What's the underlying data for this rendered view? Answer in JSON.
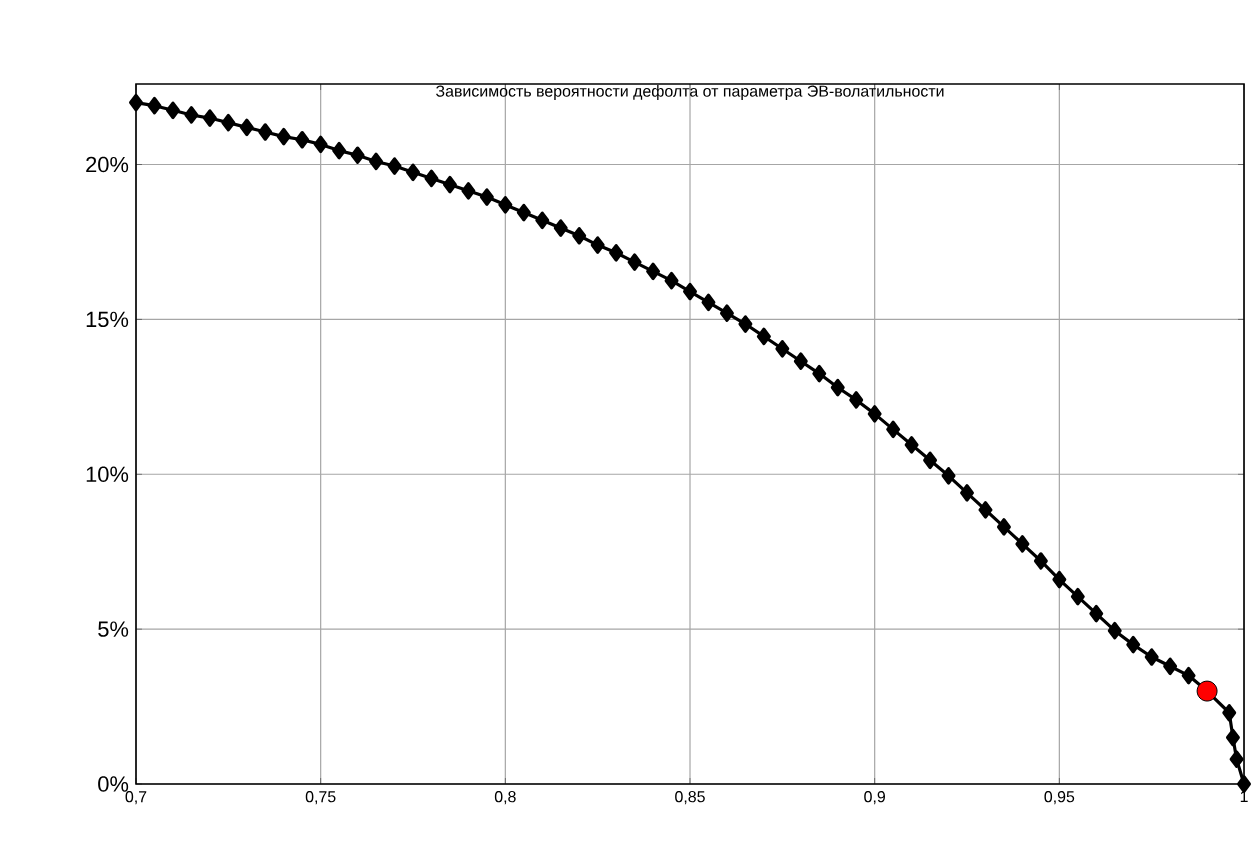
{
  "chart_data": {
    "type": "line",
    "title": "Зависимость вероятности дефолта от параметра ЭВ-волатильности",
    "xlim": [
      0.7,
      1
    ],
    "ylim": [
      0,
      22.6
    ],
    "xticks": [
      {
        "value": 0.7,
        "label": "0,7"
      },
      {
        "value": 0.75,
        "label": "0,75"
      },
      {
        "value": 0.8,
        "label": "0,8"
      },
      {
        "value": 0.85,
        "label": "0,85"
      },
      {
        "value": 0.9,
        "label": "0,9"
      },
      {
        "value": 0.95,
        "label": "0,95"
      },
      {
        "value": 1,
        "label": "1"
      }
    ],
    "yticks": [
      {
        "value": 0,
        "label": "0%"
      },
      {
        "value": 5,
        "label": "5%"
      },
      {
        "value": 10,
        "label": "10%"
      },
      {
        "value": 15,
        "label": "15%"
      },
      {
        "value": 20,
        "label": "20%"
      }
    ],
    "grid": true,
    "series": [
      {
        "color": "#000000",
        "marker": "diamond",
        "x": [
          0.7,
          0.705,
          0.71,
          0.715,
          0.72,
          0.725,
          0.73,
          0.735,
          0.74,
          0.745,
          0.75,
          0.755,
          0.76,
          0.765,
          0.77,
          0.775,
          0.78,
          0.785,
          0.79,
          0.795,
          0.8,
          0.805,
          0.81,
          0.815,
          0.82,
          0.825,
          0.83,
          0.835,
          0.84,
          0.845,
          0.85,
          0.855,
          0.86,
          0.865,
          0.87,
          0.875,
          0.88,
          0.885,
          0.89,
          0.895,
          0.9,
          0.905,
          0.91,
          0.915,
          0.92,
          0.925,
          0.93,
          0.935,
          0.94,
          0.945,
          0.95,
          0.955,
          0.96,
          0.965,
          0.97,
          0.975,
          0.98,
          0.985,
          0.99,
          0.996,
          0.997,
          0.998,
          1.0
        ],
        "values": [
          22.0,
          21.9,
          21.75,
          21.6,
          21.5,
          21.35,
          21.2,
          21.05,
          20.9,
          20.8,
          20.65,
          20.45,
          20.3,
          20.1,
          19.95,
          19.75,
          19.55,
          19.35,
          19.15,
          18.95,
          18.7,
          18.45,
          18.2,
          17.95,
          17.7,
          17.4,
          17.15,
          16.85,
          16.55,
          16.25,
          15.9,
          15.55,
          15.2,
          14.85,
          14.45,
          14.05,
          13.65,
          13.25,
          12.8,
          12.4,
          11.95,
          11.45,
          10.95,
          10.45,
          9.95,
          9.4,
          8.85,
          8.3,
          7.75,
          7.2,
          6.6,
          6.05,
          5.5,
          4.95,
          4.5,
          4.1,
          3.8,
          3.5,
          3.0,
          2.3,
          1.5,
          0.8,
          0.0
        ]
      },
      {
        "type": "scatter",
        "color": "#ff0000",
        "marker": "circle",
        "x": [
          0.99
        ],
        "values": [
          3.0
        ]
      }
    ]
  }
}
